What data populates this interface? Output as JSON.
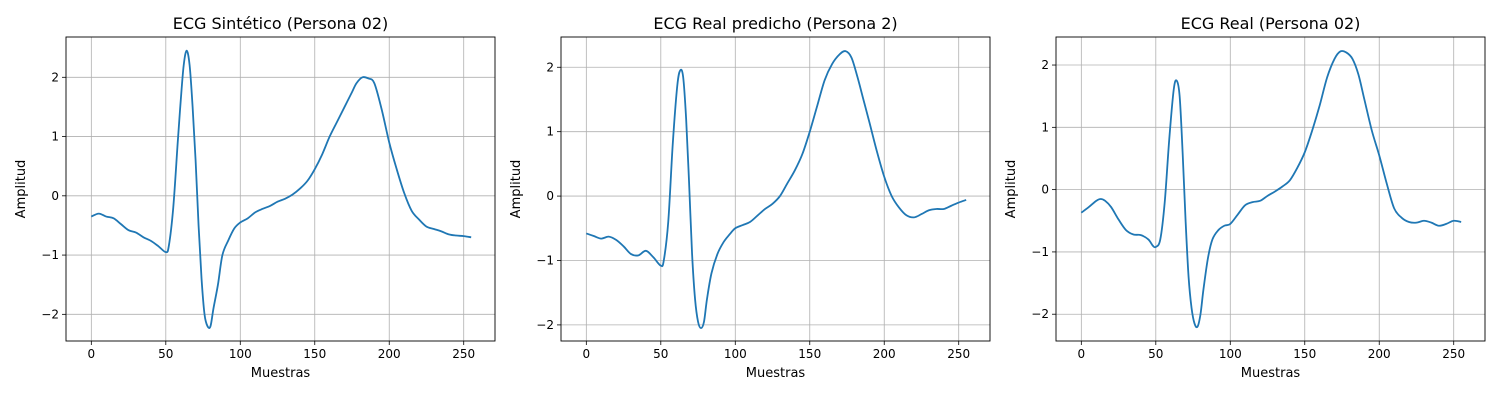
{
  "figure": {
    "background": "#ffffff",
    "line_color": "#1f77b4",
    "grid_color": "#b0b0b0"
  },
  "chart_data": [
    {
      "type": "line",
      "title": "ECG Sintético (Persona 02)",
      "xlabel": "Muestras",
      "ylabel": "Amplitud",
      "xlim": [
        -17,
        271
      ],
      "ylim": [
        -2.45,
        2.68
      ],
      "xticks": [
        0,
        50,
        100,
        150,
        200,
        250
      ],
      "xtick_labels": [
        "0",
        "50",
        "100",
        "150",
        "200",
        "250"
      ],
      "yticks": [
        -2,
        -1,
        0,
        1,
        2
      ],
      "ytick_labels": [
        "−2",
        "−1",
        "0",
        "1",
        "2"
      ],
      "grid": true,
      "series": [
        {
          "x": [
            0,
            5,
            10,
            15,
            20,
            25,
            30,
            35,
            40,
            45,
            50,
            52,
            55,
            58,
            60,
            62,
            64,
            66,
            68,
            70,
            72,
            74,
            76,
            78,
            80,
            82,
            85,
            88,
            92,
            96,
            100,
            105,
            110,
            115,
            120,
            125,
            130,
            135,
            140,
            145,
            150,
            155,
            160,
            165,
            170,
            175,
            178,
            182,
            186,
            190,
            195,
            200,
            205,
            210,
            215,
            220,
            225,
            230,
            235,
            240,
            245,
            250,
            255
          ],
          "y": [
            -0.35,
            -0.3,
            -0.35,
            -0.38,
            -0.48,
            -0.58,
            -0.62,
            -0.7,
            -0.76,
            -0.85,
            -0.95,
            -0.85,
            -0.2,
            0.9,
            1.6,
            2.2,
            2.45,
            2.2,
            1.5,
            0.6,
            -0.5,
            -1.4,
            -2.0,
            -2.2,
            -2.2,
            -1.9,
            -1.5,
            -1.0,
            -0.75,
            -0.55,
            -0.45,
            -0.38,
            -0.28,
            -0.22,
            -0.17,
            -0.1,
            -0.05,
            0.02,
            0.12,
            0.25,
            0.45,
            0.7,
            1.0,
            1.25,
            1.5,
            1.75,
            1.9,
            2.0,
            1.98,
            1.9,
            1.45,
            0.9,
            0.45,
            0.05,
            -0.25,
            -0.4,
            -0.52,
            -0.56,
            -0.6,
            -0.65,
            -0.67,
            -0.68,
            -0.7
          ]
        }
      ]
    },
    {
      "type": "line",
      "title": "ECG Real predicho (Persona 2)",
      "xlabel": "Muestras",
      "ylabel": "Amplitud",
      "xlim": [
        -17,
        271
      ],
      "ylim": [
        -2.25,
        2.47
      ],
      "xticks": [
        0,
        50,
        100,
        150,
        200,
        250
      ],
      "xtick_labels": [
        "0",
        "50",
        "100",
        "150",
        "200",
        "250"
      ],
      "yticks": [
        -2,
        -1,
        0,
        1,
        2
      ],
      "ytick_labels": [
        "−2",
        "−1",
        "0",
        "1",
        "2"
      ],
      "grid": true,
      "series": [
        {
          "x": [
            0,
            5,
            10,
            15,
            20,
            25,
            30,
            35,
            40,
            45,
            50,
            52,
            55,
            58,
            61,
            63,
            65,
            67,
            69,
            71,
            73,
            75,
            77,
            79,
            81,
            84,
            88,
            92,
            96,
            100,
            105,
            110,
            115,
            120,
            125,
            130,
            135,
            140,
            145,
            150,
            155,
            160,
            165,
            170,
            174,
            178,
            182,
            186,
            190,
            195,
            200,
            205,
            210,
            215,
            220,
            225,
            230,
            235,
            240,
            245,
            250,
            255
          ],
          "y": [
            -0.58,
            -0.62,
            -0.66,
            -0.63,
            -0.68,
            -0.78,
            -0.9,
            -0.92,
            -0.85,
            -0.95,
            -1.08,
            -1.0,
            -0.4,
            0.8,
            1.7,
            1.95,
            1.85,
            1.2,
            0.2,
            -0.9,
            -1.6,
            -1.95,
            -2.05,
            -1.95,
            -1.6,
            -1.2,
            -0.9,
            -0.72,
            -0.6,
            -0.5,
            -0.45,
            -0.4,
            -0.3,
            -0.2,
            -0.12,
            0.0,
            0.2,
            0.4,
            0.65,
            1.0,
            1.4,
            1.8,
            2.05,
            2.2,
            2.25,
            2.15,
            1.85,
            1.5,
            1.15,
            0.7,
            0.3,
            0.0,
            -0.18,
            -0.3,
            -0.33,
            -0.28,
            -0.22,
            -0.2,
            -0.2,
            -0.15,
            -0.1,
            -0.06
          ]
        }
      ]
    },
    {
      "type": "line",
      "title": "ECG Real (Persona 02)",
      "xlabel": "Muestras",
      "ylabel": "Amplitud",
      "xlim": [
        -17,
        271
      ],
      "ylim": [
        -2.43,
        2.45
      ],
      "xticks": [
        0,
        50,
        100,
        150,
        200,
        250
      ],
      "xtick_labels": [
        "0",
        "50",
        "100",
        "150",
        "200",
        "250"
      ],
      "yticks": [
        -2,
        -1,
        0,
        1,
        2
      ],
      "ytick_labels": [
        "−2",
        "−1",
        "0",
        "1",
        "2"
      ],
      "grid": true,
      "series": [
        {
          "x": [
            0,
            5,
            10,
            13,
            16,
            20,
            25,
            30,
            35,
            40,
            45,
            48,
            50,
            53,
            56,
            59,
            62,
            64,
            66,
            68,
            70,
            72,
            74,
            76,
            78,
            80,
            82,
            85,
            88,
            92,
            96,
            100,
            105,
            110,
            115,
            120,
            125,
            130,
            135,
            140,
            145,
            150,
            155,
            160,
            165,
            170,
            174,
            178,
            182,
            186,
            190,
            195,
            200,
            205,
            210,
            215,
            220,
            225,
            230,
            235,
            240,
            245,
            250,
            255
          ],
          "y": [
            -0.37,
            -0.28,
            -0.18,
            -0.15,
            -0.18,
            -0.28,
            -0.48,
            -0.65,
            -0.72,
            -0.73,
            -0.8,
            -0.9,
            -0.92,
            -0.8,
            -0.2,
            0.8,
            1.6,
            1.75,
            1.5,
            0.6,
            -0.5,
            -1.4,
            -1.9,
            -2.15,
            -2.2,
            -2.0,
            -1.6,
            -1.1,
            -0.8,
            -0.65,
            -0.58,
            -0.55,
            -0.4,
            -0.25,
            -0.2,
            -0.18,
            -0.1,
            -0.03,
            0.05,
            0.15,
            0.35,
            0.6,
            0.95,
            1.35,
            1.8,
            2.1,
            2.22,
            2.2,
            2.1,
            1.85,
            1.45,
            0.95,
            0.55,
            0.1,
            -0.3,
            -0.45,
            -0.52,
            -0.53,
            -0.5,
            -0.53,
            -0.58,
            -0.55,
            -0.5,
            -0.52
          ]
        }
      ]
    }
  ]
}
